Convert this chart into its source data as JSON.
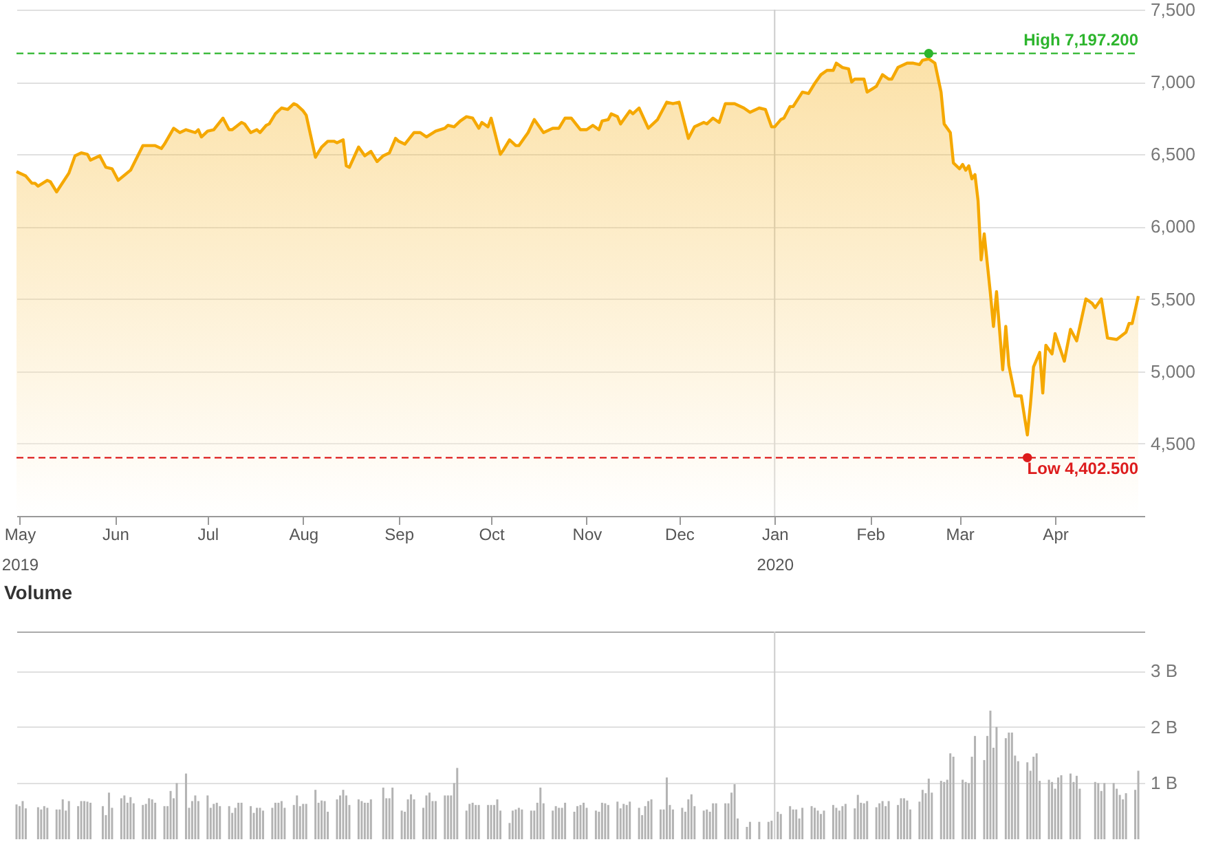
{
  "chart_data": [
    {
      "type": "area",
      "x": [
        "2019-04-30",
        "2019-05-03",
        "2019-05-05",
        "2019-05-06",
        "2019-05-07",
        "2019-05-10",
        "2019-05-11",
        "2019-05-13",
        "2019-05-17",
        "2019-05-19",
        "2019-05-21",
        "2019-05-23",
        "2019-05-24",
        "2019-05-27",
        "2019-05-29",
        "2019-05-31",
        "2019-06-02",
        "2019-06-06",
        "2019-06-10",
        "2019-06-13",
        "2019-06-14",
        "2019-06-16",
        "2019-06-17",
        "2019-06-20",
        "2019-06-22",
        "2019-06-24",
        "2019-06-27",
        "2019-06-28",
        "2019-06-29",
        "2019-07-01",
        "2019-07-03",
        "2019-07-06",
        "2019-07-08",
        "2019-07-09",
        "2019-07-12",
        "2019-07-13",
        "2019-07-15",
        "2019-07-17",
        "2019-07-18",
        "2019-07-20",
        "2019-07-21",
        "2019-07-23",
        "2019-07-25",
        "2019-07-27",
        "2019-07-29",
        "2019-07-30",
        "2019-08-01",
        "2019-08-02",
        "2019-08-05",
        "2019-08-07",
        "2019-08-09",
        "2019-08-11",
        "2019-08-12",
        "2019-08-14",
        "2019-08-15",
        "2019-08-16",
        "2019-08-19",
        "2019-08-21",
        "2019-08-23",
        "2019-08-25",
        "2019-08-27",
        "2019-08-29",
        "2019-08-31",
        "2019-09-01",
        "2019-09-03",
        "2019-09-06",
        "2019-09-08",
        "2019-09-10",
        "2019-09-13",
        "2019-09-16",
        "2019-09-17",
        "2019-09-19",
        "2019-09-21",
        "2019-09-23",
        "2019-09-25",
        "2019-09-27",
        "2019-09-28",
        "2019-09-30",
        "2019-10-01",
        "2019-10-04",
        "2019-10-05",
        "2019-10-07",
        "2019-10-09",
        "2019-10-10",
        "2019-10-13",
        "2019-10-15",
        "2019-10-18",
        "2019-10-21",
        "2019-10-23",
        "2019-10-25",
        "2019-10-27",
        "2019-10-30",
        "2019-11-01",
        "2019-11-03",
        "2019-11-05",
        "2019-11-06",
        "2019-11-08",
        "2019-11-09",
        "2019-11-11",
        "2019-11-12",
        "2019-11-15",
        "2019-11-16",
        "2019-11-18",
        "2019-11-21",
        "2019-11-24",
        "2019-11-27",
        "2019-11-29",
        "2019-12-01",
        "2019-12-04",
        "2019-12-06",
        "2019-12-09",
        "2019-12-10",
        "2019-12-12",
        "2019-12-14",
        "2019-12-16",
        "2019-12-19",
        "2019-12-22",
        "2019-12-24",
        "2019-12-27",
        "2019-12-29",
        "2019-12-31",
        "2020-01-01",
        "2020-01-03",
        "2020-01-04",
        "2020-01-06",
        "2020-01-07",
        "2020-01-10",
        "2020-01-12",
        "2020-01-14",
        "2020-01-16",
        "2020-01-18",
        "2020-01-20",
        "2020-01-21",
        "2020-01-23",
        "2020-01-25",
        "2020-01-26",
        "2020-01-27",
        "2020-01-29",
        "2020-01-30",
        "2020-01-31",
        "2020-02-03",
        "2020-02-05",
        "2020-02-07",
        "2020-02-08",
        "2020-02-10",
        "2020-02-13",
        "2020-02-15",
        "2020-02-17",
        "2020-02-18",
        "2020-02-20",
        "2020-02-22",
        "2020-02-24",
        "2020-02-25",
        "2020-02-27",
        "2020-02-28",
        "2020-03-01",
        "2020-03-02",
        "2020-03-03",
        "2020-03-04",
        "2020-03-05",
        "2020-03-06",
        "2020-03-07",
        "2020-03-08",
        "2020-03-09",
        "2020-03-11",
        "2020-03-12",
        "2020-03-13",
        "2020-03-15",
        "2020-03-16",
        "2020-03-17",
        "2020-03-19",
        "2020-03-21",
        "2020-03-23",
        "2020-03-24",
        "2020-03-25",
        "2020-03-27",
        "2020-03-28",
        "2020-03-29",
        "2020-03-31",
        "2020-04-01",
        "2020-04-04",
        "2020-04-06",
        "2020-04-08",
        "2020-04-11",
        "2020-04-13",
        "2020-04-14",
        "2020-04-16",
        "2020-04-18",
        "2020-04-21",
        "2020-04-24",
        "2020-04-25",
        "2020-04-26",
        "2020-04-28"
      ],
      "series": [
        {
          "color": "#f5a800",
          "values": [
            6380,
            6350,
            6300,
            6300,
            6280,
            6320,
            6310,
            6240,
            6370,
            6490,
            6510,
            6500,
            6460,
            6490,
            6410,
            6400,
            6320,
            6390,
            6560,
            6560,
            6560,
            6540,
            6570,
            6680,
            6650,
            6670,
            6650,
            6670,
            6620,
            6660,
            6670,
            6750,
            6670,
            6670,
            6720,
            6710,
            6650,
            6670,
            6650,
            6700,
            6710,
            6780,
            6820,
            6810,
            6850,
            6840,
            6800,
            6770,
            6480,
            6550,
            6590,
            6590,
            6580,
            6600,
            6420,
            6410,
            6550,
            6490,
            6520,
            6450,
            6490,
            6510,
            6610,
            6590,
            6570,
            6650,
            6650,
            6620,
            6660,
            6680,
            6700,
            6690,
            6730,
            6760,
            6750,
            6680,
            6720,
            6690,
            6750,
            6500,
            6530,
            6600,
            6560,
            6560,
            6650,
            6740,
            6650,
            6680,
            6680,
            6750,
            6750,
            6670,
            6670,
            6700,
            6670,
            6730,
            6740,
            6780,
            6760,
            6710,
            6800,
            6780,
            6820,
            6680,
            6740,
            6860,
            6850,
            6860,
            6610,
            6690,
            6720,
            6710,
            6750,
            6720,
            6850,
            6850,
            6820,
            6790,
            6820,
            6810,
            6690,
            6690,
            6740,
            6750,
            6830,
            6830,
            6930,
            6920,
            6990,
            7050,
            7080,
            7080,
            7130,
            7100,
            7090,
            7000,
            7020,
            7020,
            7020,
            6930,
            6970,
            7050,
            7020,
            7020,
            7100,
            7130,
            7130,
            7120,
            7150,
            7160,
            7130,
            6930,
            6710,
            6650,
            6440,
            6400,
            6430,
            6390,
            6420,
            6330,
            6360,
            6180,
            5770,
            5950,
            5540,
            5310,
            5550,
            5010,
            5310,
            5040,
            4830,
            4830,
            4560,
            4770,
            5030,
            5130,
            4850,
            5180,
            5120,
            5260,
            5070,
            5290,
            5210,
            5500,
            5470,
            5440,
            5500,
            5230,
            5220,
            5270,
            5330,
            5330,
            5520
          ]
        },
        {
          "type": "scatter",
          "x": [
            "2020-02-20",
            "2020-03-23"
          ],
          "values": [
            7197.2,
            4402.5
          ],
          "colors": [
            "#2db52d",
            "#dd1c1c"
          ]
        }
      ],
      "xlim": [
        "2019-04-30",
        "2020-04-30"
      ],
      "xticks": [
        {
          "value": "2019-05-01",
          "label": "May\n2019"
        },
        {
          "value": "2019-06-01",
          "label": "Jun"
        },
        {
          "value": "2019-07-01",
          "label": "Jul"
        },
        {
          "value": "2019-08-01",
          "label": "Aug"
        },
        {
          "value": "2019-09-01",
          "label": "Sep"
        },
        {
          "value": "2019-10-01",
          "label": "Oct"
        },
        {
          "value": "2019-11-01",
          "label": "Nov"
        },
        {
          "value": "2019-12-01",
          "label": "Dec"
        },
        {
          "value": "2020-01-01",
          "label": "Jan\n2020"
        },
        {
          "value": "2020-02-01",
          "label": "Feb"
        },
        {
          "value": "2020-03-01",
          "label": "Mar"
        },
        {
          "value": "2020-04-01",
          "label": "Apr"
        }
      ],
      "ylim": [
        4000,
        7500
      ],
      "yticks": [
        {
          "value": 4500,
          "label": "4,500"
        },
        {
          "value": 5000,
          "label": "5,000"
        },
        {
          "value": 5500,
          "label": "5,500"
        },
        {
          "value": 6000,
          "label": "6,000"
        },
        {
          "value": 6500,
          "label": "6,500"
        },
        {
          "value": 7000,
          "label": "7,000"
        },
        {
          "value": 7500,
          "label": "7,500"
        }
      ],
      "grid": "y",
      "ref_lines": [
        {
          "axis": "x",
          "value": "2020-01-01",
          "color": "#cccccc"
        },
        {
          "axis": "y",
          "value": 7197.2,
          "label": "High 7,197.200",
          "color": "#2db52d",
          "line_style": "dashed"
        },
        {
          "axis": "y",
          "value": 4402.5,
          "label": "Low 4,402.500",
          "color": "#dd1c1c",
          "line_style": "dashed"
        }
      ]
    },
    {
      "type": "bar",
      "title": "Volume",
      "x": [
        "2019-04-30",
        "2019-05-01",
        "2019-05-02",
        "2019-05-03",
        "2019-05-07",
        "2019-05-08",
        "2019-05-09",
        "2019-05-10",
        "2019-05-13",
        "2019-05-14",
        "2019-05-15",
        "2019-05-16",
        "2019-05-17",
        "2019-05-20",
        "2019-05-21",
        "2019-05-22",
        "2019-05-23",
        "2019-05-24",
        "2019-05-28",
        "2019-05-29",
        "2019-05-30",
        "2019-05-31",
        "2019-06-03",
        "2019-06-04",
        "2019-06-05",
        "2019-06-06",
        "2019-06-07",
        "2019-06-10",
        "2019-06-11",
        "2019-06-12",
        "2019-06-13",
        "2019-06-14",
        "2019-06-17",
        "2019-06-18",
        "2019-06-19",
        "2019-06-20",
        "2019-06-21",
        "2019-06-24",
        "2019-06-25",
        "2019-06-26",
        "2019-06-27",
        "2019-06-28",
        "2019-07-01",
        "2019-07-02",
        "2019-07-03",
        "2019-07-04",
        "2019-07-05",
        "2019-07-08",
        "2019-07-09",
        "2019-07-10",
        "2019-07-11",
        "2019-07-12",
        "2019-07-15",
        "2019-07-16",
        "2019-07-17",
        "2019-07-18",
        "2019-07-19",
        "2019-07-22",
        "2019-07-23",
        "2019-07-24",
        "2019-07-25",
        "2019-07-26",
        "2019-07-29",
        "2019-07-30",
        "2019-07-31",
        "2019-08-01",
        "2019-08-02",
        "2019-08-05",
        "2019-08-06",
        "2019-08-07",
        "2019-08-08",
        "2019-08-09",
        "2019-08-12",
        "2019-08-13",
        "2019-08-14",
        "2019-08-15",
        "2019-08-16",
        "2019-08-19",
        "2019-08-20",
        "2019-08-21",
        "2019-08-22",
        "2019-08-23",
        "2019-08-27",
        "2019-08-28",
        "2019-08-29",
        "2019-08-30",
        "2019-09-02",
        "2019-09-03",
        "2019-09-04",
        "2019-09-05",
        "2019-09-06",
        "2019-09-09",
        "2019-09-10",
        "2019-09-11",
        "2019-09-12",
        "2019-09-13",
        "2019-09-16",
        "2019-09-17",
        "2019-09-18",
        "2019-09-19",
        "2019-09-20",
        "2019-09-23",
        "2019-09-24",
        "2019-09-25",
        "2019-09-26",
        "2019-09-27",
        "2019-09-30",
        "2019-10-01",
        "2019-10-02",
        "2019-10-03",
        "2019-10-04",
        "2019-10-07",
        "2019-10-08",
        "2019-10-09",
        "2019-10-10",
        "2019-10-11",
        "2019-10-14",
        "2019-10-15",
        "2019-10-16",
        "2019-10-17",
        "2019-10-18",
        "2019-10-21",
        "2019-10-22",
        "2019-10-23",
        "2019-10-24",
        "2019-10-25",
        "2019-10-28",
        "2019-10-29",
        "2019-10-30",
        "2019-10-31",
        "2019-11-01",
        "2019-11-04",
        "2019-11-05",
        "2019-11-06",
        "2019-11-07",
        "2019-11-08",
        "2019-11-11",
        "2019-11-12",
        "2019-11-13",
        "2019-11-14",
        "2019-11-15",
        "2019-11-18",
        "2019-11-19",
        "2019-11-20",
        "2019-11-21",
        "2019-11-22",
        "2019-11-25",
        "2019-11-26",
        "2019-11-27",
        "2019-11-28",
        "2019-11-29",
        "2019-12-02",
        "2019-12-03",
        "2019-12-04",
        "2019-12-05",
        "2019-12-06",
        "2019-12-09",
        "2019-12-10",
        "2019-12-11",
        "2019-12-12",
        "2019-12-13",
        "2019-12-16",
        "2019-12-17",
        "2019-12-18",
        "2019-12-19",
        "2019-12-20",
        "2019-12-23",
        "2019-12-24",
        "2019-12-27",
        "2019-12-30",
        "2019-12-31",
        "2020-01-02",
        "2020-01-03",
        "2020-01-06",
        "2020-01-07",
        "2020-01-08",
        "2020-01-09",
        "2020-01-10",
        "2020-01-13",
        "2020-01-14",
        "2020-01-15",
        "2020-01-16",
        "2020-01-17",
        "2020-01-20",
        "2020-01-21",
        "2020-01-22",
        "2020-01-23",
        "2020-01-24",
        "2020-01-27",
        "2020-01-28",
        "2020-01-29",
        "2020-01-30",
        "2020-01-31",
        "2020-02-03",
        "2020-02-04",
        "2020-02-05",
        "2020-02-06",
        "2020-02-07",
        "2020-02-10",
        "2020-02-11",
        "2020-02-12",
        "2020-02-13",
        "2020-02-14",
        "2020-02-17",
        "2020-02-18",
        "2020-02-19",
        "2020-02-20",
        "2020-02-21",
        "2020-02-24",
        "2020-02-25",
        "2020-02-26",
        "2020-02-27",
        "2020-02-28",
        "2020-03-02",
        "2020-03-03",
        "2020-03-04",
        "2020-03-05",
        "2020-03-06",
        "2020-03-09",
        "2020-03-10",
        "2020-03-11",
        "2020-03-12",
        "2020-03-13",
        "2020-03-16",
        "2020-03-17",
        "2020-03-18",
        "2020-03-19",
        "2020-03-20",
        "2020-03-23",
        "2020-03-24",
        "2020-03-25",
        "2020-03-26",
        "2020-03-27",
        "2020-03-30",
        "2020-03-31",
        "2020-04-01",
        "2020-04-02",
        "2020-04-03",
        "2020-04-06",
        "2020-04-07",
        "2020-04-08",
        "2020-04-09",
        "2020-04-14",
        "2020-04-15",
        "2020-04-16",
        "2020-04-17",
        "2020-04-20",
        "2020-04-21",
        "2020-04-22",
        "2020-04-23",
        "2020-04-24",
        "2020-04-27",
        "2020-04-28"
      ],
      "values": [
        0.62,
        0.59,
        0.68,
        0.55,
        0.57,
        0.53,
        0.59,
        0.56,
        0.53,
        0.53,
        0.71,
        0.51,
        0.68,
        0.59,
        0.68,
        0.68,
        0.67,
        0.65,
        0.59,
        0.43,
        0.83,
        0.56,
        0.73,
        0.78,
        0.65,
        0.75,
        0.64,
        0.61,
        0.63,
        0.73,
        0.71,
        0.65,
        0.59,
        0.59,
        0.86,
        0.73,
        1.0,
        1.17,
        0.56,
        0.68,
        0.78,
        0.68,
        0.78,
        0.56,
        0.63,
        0.65,
        0.59,
        0.59,
        0.47,
        0.56,
        0.65,
        0.65,
        0.59,
        0.47,
        0.56,
        0.56,
        0.51,
        0.56,
        0.65,
        0.65,
        0.68,
        0.56,
        0.61,
        0.78,
        0.59,
        0.63,
        0.63,
        0.88,
        0.65,
        0.69,
        0.68,
        0.49,
        0.71,
        0.78,
        0.88,
        0.78,
        0.61,
        0.71,
        0.68,
        0.65,
        0.65,
        0.71,
        0.92,
        0.73,
        0.73,
        0.92,
        0.51,
        0.49,
        0.71,
        0.8,
        0.71,
        0.56,
        0.78,
        0.83,
        0.68,
        0.68,
        0.78,
        0.78,
        0.78,
        1.0,
        1.27,
        0.51,
        0.63,
        0.65,
        0.61,
        0.61,
        0.61,
        0.61,
        0.61,
        0.71,
        0.51,
        0.29,
        0.51,
        0.53,
        0.56,
        0.53,
        0.51,
        0.51,
        0.65,
        0.92,
        0.64,
        0.51,
        0.59,
        0.56,
        0.56,
        0.65,
        0.49,
        0.59,
        0.61,
        0.65,
        0.56,
        0.51,
        0.49,
        0.65,
        0.64,
        0.61,
        0.67,
        0.55,
        0.63,
        0.61,
        0.67,
        0.56,
        0.43,
        0.59,
        0.68,
        0.71,
        0.53,
        0.53,
        1.1,
        0.61,
        0.53,
        0.56,
        0.49,
        0.71,
        0.8,
        0.59,
        0.51,
        0.53,
        0.49,
        0.64,
        0.64,
        0.64,
        0.64,
        0.83,
        0.98,
        0.37,
        0.22,
        0.31,
        0.31,
        0.31,
        0.33,
        0.49,
        0.45,
        0.59,
        0.53,
        0.53,
        0.37,
        0.56,
        0.59,
        0.56,
        0.51,
        0.45,
        0.51,
        0.61,
        0.56,
        0.51,
        0.59,
        0.63,
        0.55,
        0.79,
        0.65,
        0.64,
        0.68,
        0.57,
        0.64,
        0.68,
        0.59,
        0.68,
        0.61,
        0.73,
        0.73,
        0.69,
        0.53,
        0.67,
        0.88,
        0.82,
        1.08,
        0.83,
        1.04,
        1.02,
        1.06,
        1.53,
        1.47,
        1.06,
        1.02,
        1.0,
        1.47,
        1.84,
        1.41,
        1.84,
        2.29,
        1.63,
        2.0,
        1.8,
        1.9,
        1.9,
        1.49,
        1.39,
        1.37,
        1.22,
        1.47,
        1.53,
        1.04,
        1.06,
        1.02,
        0.9,
        1.1,
        1.14,
        1.17,
        1.02,
        1.13,
        0.9,
        1.02,
        1.0,
        0.86,
        1.0,
        1.0,
        0.9,
        0.79,
        0.71,
        0.82,
        0.88,
        1.22
      ],
      "color": "#b3b3b3",
      "xlim": [
        "2019-04-30",
        "2020-04-30"
      ],
      "ylim": [
        0,
        3.7
      ],
      "yticks": [
        {
          "value": 1,
          "label": "1 B"
        },
        {
          "value": 2,
          "label": "2 B"
        },
        {
          "value": 3,
          "label": "3 B"
        }
      ],
      "grid": "y",
      "tick_labels": "y",
      "ref_lines": [
        {
          "axis": "x",
          "value": "2020-01-01",
          "color": "#cccccc"
        }
      ]
    }
  ]
}
